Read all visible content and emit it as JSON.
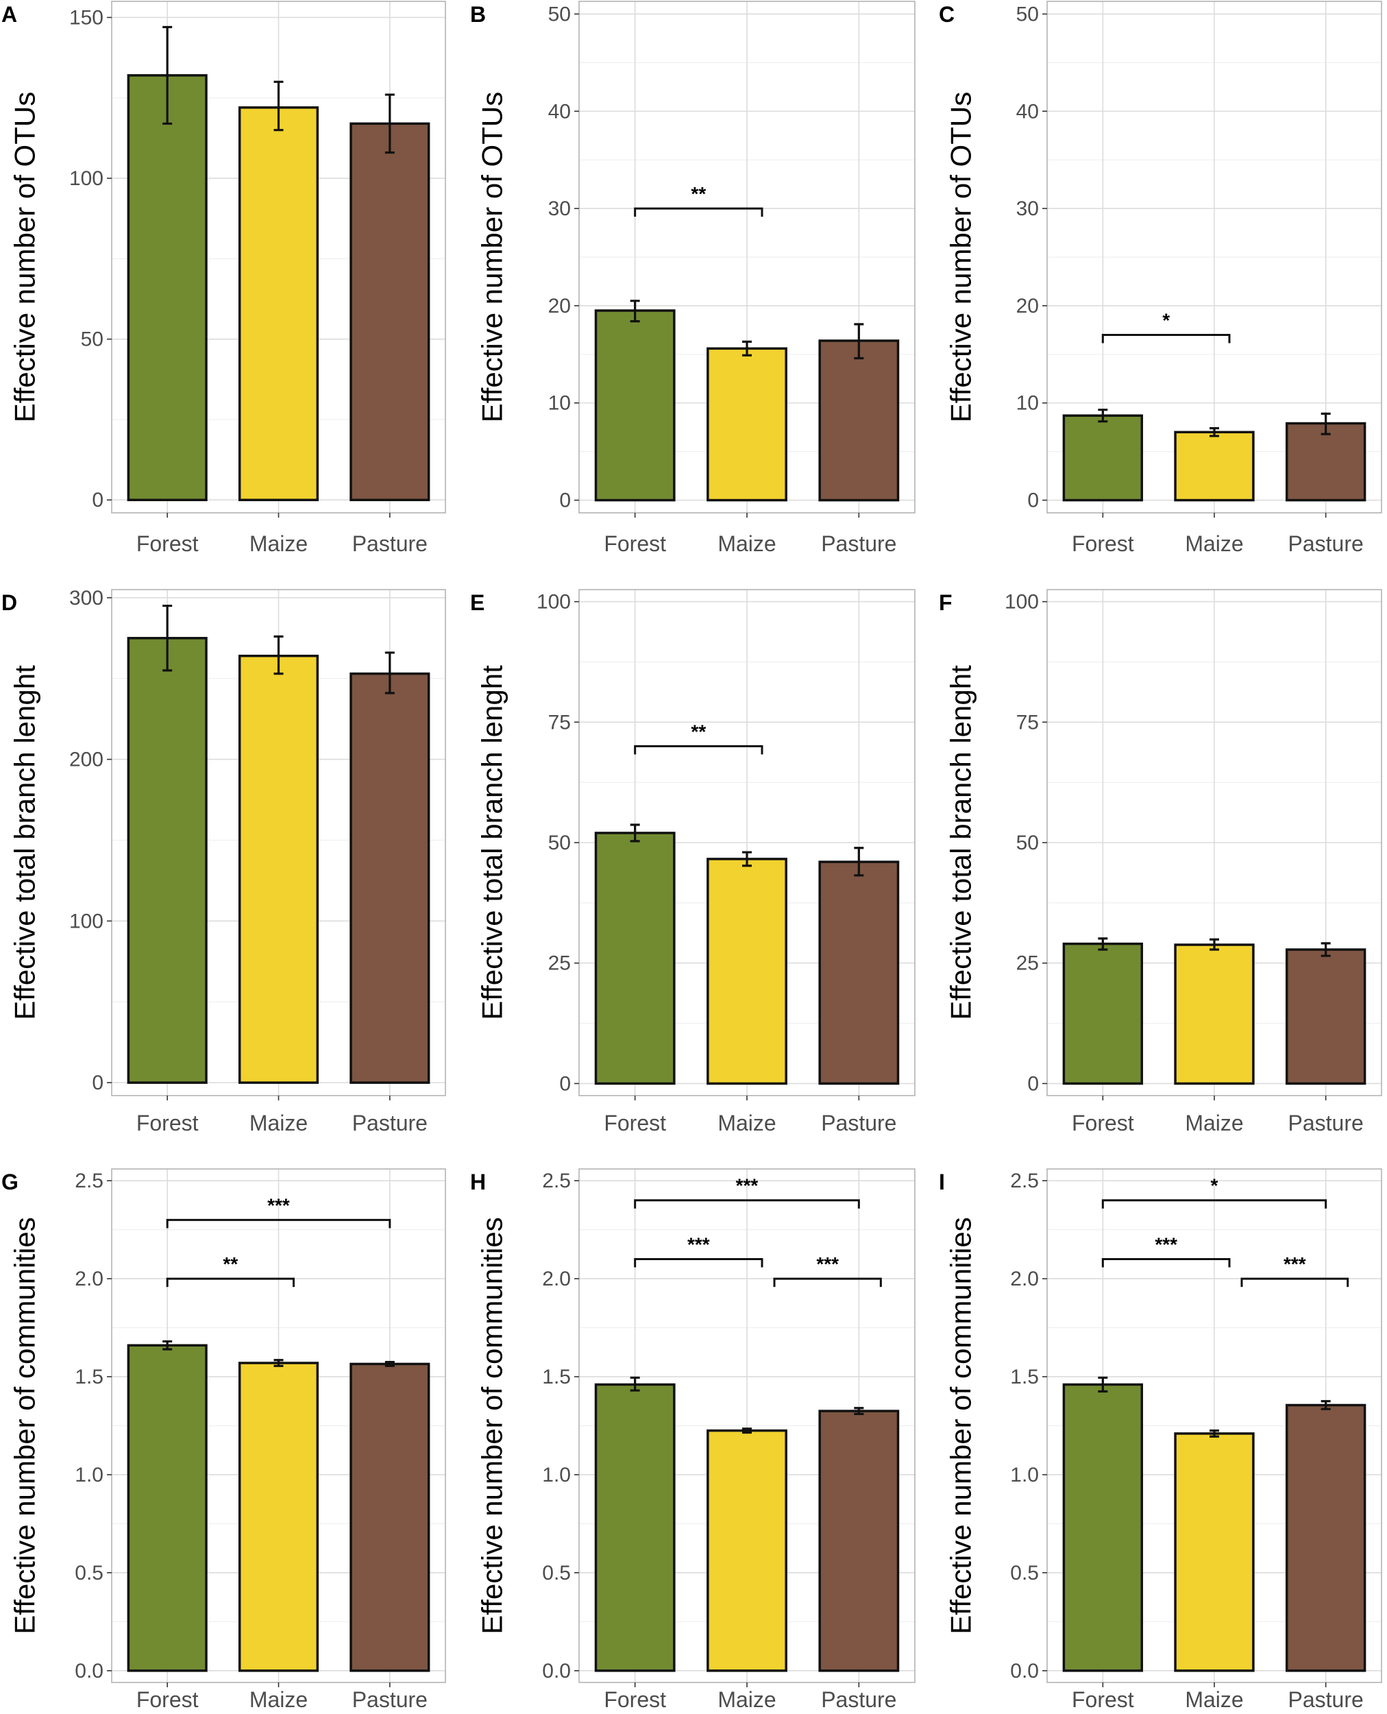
{
  "colors": {
    "Forest": "#728b31",
    "Maize": "#f2d22e",
    "Pasture": "#7e5643"
  },
  "chart_data": [
    {
      "panel": "A",
      "type": "bar",
      "ylabel": "Effective number of OTUs",
      "categories": [
        "Forest",
        "Maize",
        "Pasture"
      ],
      "values": [
        132,
        122,
        117
      ],
      "errors": [
        [
          117,
          147
        ],
        [
          115,
          130
        ],
        [
          108,
          126
        ]
      ],
      "ylim": [
        -4,
        155
      ],
      "yticks": [
        0,
        50,
        100,
        150
      ],
      "ytick_labels": [
        "0",
        "50",
        "100",
        "150"
      ],
      "brackets": []
    },
    {
      "panel": "B",
      "type": "bar",
      "ylabel": "Effective number of OTUs",
      "categories": [
        "Forest",
        "Maize",
        "Pasture"
      ],
      "values": [
        19.5,
        15.6,
        16.4
      ],
      "errors": [
        [
          18.4,
          20.5
        ],
        [
          14.9,
          16.3
        ],
        [
          14.6,
          18.1
        ]
      ],
      "ylim": [
        -1.3,
        51.3
      ],
      "yticks": [
        0,
        10,
        20,
        30,
        40,
        50
      ],
      "ytick_labels": [
        "0",
        "10",
        "20",
        "30",
        "40",
        "50"
      ],
      "brackets": [
        {
          "from": 0,
          "to": 1,
          "y": 30,
          "label": "**"
        }
      ]
    },
    {
      "panel": "C",
      "type": "bar",
      "ylabel": "Effective number of OTUs",
      "categories": [
        "Forest",
        "Maize",
        "Pasture"
      ],
      "values": [
        8.7,
        7.0,
        7.9
      ],
      "errors": [
        [
          8.1,
          9.3
        ],
        [
          6.6,
          7.4
        ],
        [
          6.8,
          8.9
        ]
      ],
      "ylim": [
        -1.3,
        51.3
      ],
      "yticks": [
        0,
        10,
        20,
        30,
        40,
        50
      ],
      "ytick_labels": [
        "0",
        "10",
        "20",
        "30",
        "40",
        "50"
      ],
      "brackets": [
        {
          "from": 0,
          "to": 1,
          "y": 17,
          "label": "*"
        }
      ]
    },
    {
      "panel": "D",
      "type": "bar",
      "ylabel": "Effective total branch lenght",
      "categories": [
        "Forest",
        "Maize",
        "Pasture"
      ],
      "values": [
        275,
        264,
        253
      ],
      "errors": [
        [
          255,
          295
        ],
        [
          253,
          276
        ],
        [
          241,
          266
        ]
      ],
      "ylim": [
        -8,
        305
      ],
      "yticks": [
        0,
        100,
        200,
        300
      ],
      "ytick_labels": [
        "0",
        "100",
        "200",
        "300"
      ],
      "brackets": []
    },
    {
      "panel": "E",
      "type": "bar",
      "ylabel": "Effective total branch lenght",
      "categories": [
        "Forest",
        "Maize",
        "Pasture"
      ],
      "values": [
        52,
        46.6,
        46
      ],
      "errors": [
        [
          50.3,
          53.7
        ],
        [
          45.2,
          48
        ],
        [
          43.2,
          48.9
        ]
      ],
      "ylim": [
        -2.5,
        102.5
      ],
      "yticks": [
        0,
        25,
        50,
        75,
        100
      ],
      "ytick_labels": [
        "0",
        "25",
        "50",
        "75",
        "100"
      ],
      "brackets": [
        {
          "from": 0,
          "to": 1,
          "y": 70,
          "label": "**"
        }
      ]
    },
    {
      "panel": "F",
      "type": "bar",
      "ylabel": "Effective total branch lenght",
      "categories": [
        "Forest",
        "Maize",
        "Pasture"
      ],
      "values": [
        29,
        28.8,
        27.8
      ],
      "errors": [
        [
          27.8,
          30.1
        ],
        [
          27.8,
          29.9
        ],
        [
          26.5,
          29.1
        ]
      ],
      "ylim": [
        -2.5,
        102.5
      ],
      "yticks": [
        0,
        25,
        50,
        75,
        100
      ],
      "ytick_labels": [
        "0",
        "25",
        "50",
        "75",
        "100"
      ],
      "brackets": []
    },
    {
      "panel": "G",
      "type": "bar",
      "ylabel": "Effective number of communities",
      "categories": [
        "Forest",
        "Maize",
        "Pasture"
      ],
      "values": [
        1.66,
        1.57,
        1.565
      ],
      "errors": [
        [
          1.64,
          1.68
        ],
        [
          1.555,
          1.585
        ],
        [
          1.555,
          1.575
        ]
      ],
      "ylim": [
        -0.06,
        2.56
      ],
      "yticks": [
        0,
        0.5,
        1,
        1.5,
        2,
        2.5
      ],
      "ytick_labels": [
        "0.0",
        "0.5",
        "1.0",
        "1.5",
        "2.0",
        "2.5"
      ],
      "brackets": [
        {
          "from": 0,
          "to": 1,
          "y": 2.0,
          "label": "**"
        },
        {
          "from": 0,
          "to": 2,
          "y": 2.3,
          "label": "***"
        }
      ]
    },
    {
      "panel": "H",
      "type": "bar",
      "ylabel": "Effective number of communities",
      "categories": [
        "Forest",
        "Maize",
        "Pasture"
      ],
      "values": [
        1.46,
        1.225,
        1.325
      ],
      "errors": [
        [
          1.43,
          1.495
        ],
        [
          1.215,
          1.235
        ],
        [
          1.31,
          1.34
        ]
      ],
      "ylim": [
        -0.06,
        2.56
      ],
      "yticks": [
        0,
        0.5,
        1,
        1.5,
        2,
        2.5
      ],
      "ytick_labels": [
        "0.0",
        "0.5",
        "1.0",
        "1.5",
        "2.0",
        "2.5"
      ],
      "brackets": [
        {
          "from": 0,
          "to": 1,
          "y": 2.1,
          "label": "***"
        },
        {
          "from": 1,
          "to": 2,
          "y": 2.0,
          "label": "***"
        },
        {
          "from": 0,
          "to": 2,
          "y": 2.4,
          "label": "***"
        }
      ]
    },
    {
      "panel": "I",
      "type": "bar",
      "ylabel": "Effective number of communities",
      "categories": [
        "Forest",
        "Maize",
        "Pasture"
      ],
      "values": [
        1.46,
        1.21,
        1.355
      ],
      "errors": [
        [
          1.425,
          1.495
        ],
        [
          1.195,
          1.225
        ],
        [
          1.335,
          1.375
        ]
      ],
      "ylim": [
        -0.06,
        2.56
      ],
      "yticks": [
        0,
        0.5,
        1,
        1.5,
        2,
        2.5
      ],
      "ytick_labels": [
        "0.0",
        "0.5",
        "1.0",
        "1.5",
        "2.0",
        "2.5"
      ],
      "brackets": [
        {
          "from": 0,
          "to": 1,
          "y": 2.1,
          "label": "***"
        },
        {
          "from": 1,
          "to": 2,
          "y": 2.0,
          "label": "***"
        },
        {
          "from": 0,
          "to": 2,
          "y": 2.4,
          "label": "*"
        }
      ]
    }
  ]
}
